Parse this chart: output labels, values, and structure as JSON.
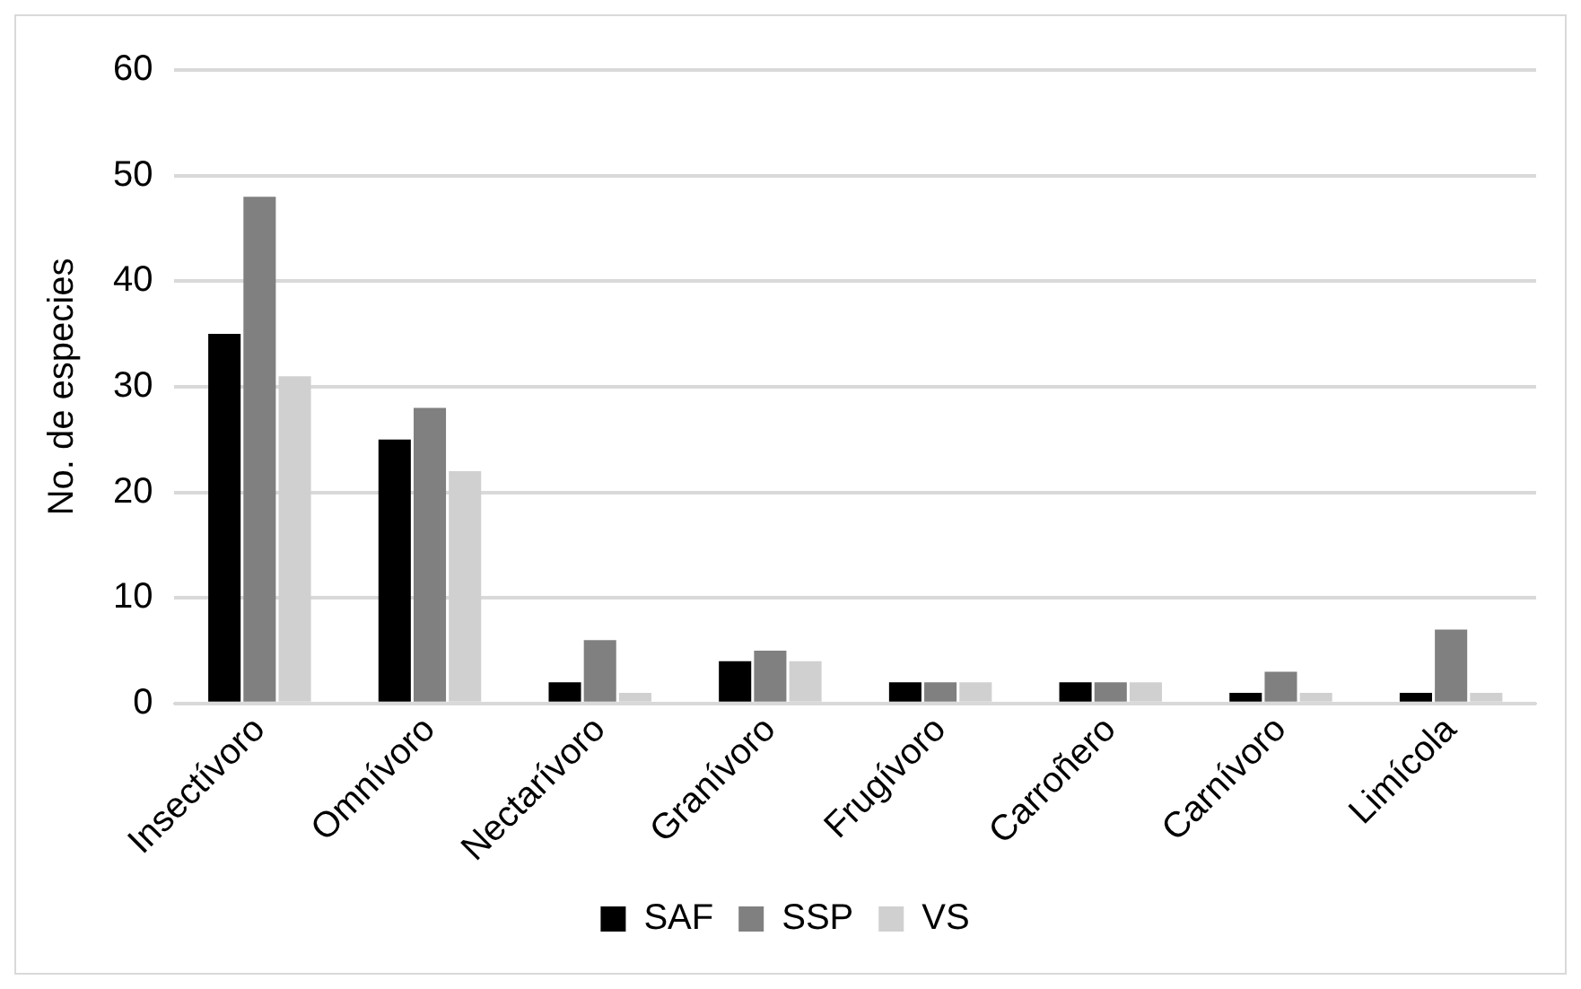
{
  "chart_data": {
    "type": "bar",
    "ylabel": "No. de especies",
    "categories": [
      "Insectívoro",
      "Omnívoro",
      "Nectarívoro",
      "Granívoro",
      "Frugívoro",
      "Carroñero",
      "Carnívoro",
      "Limícola"
    ],
    "series": [
      {
        "name": "SAF",
        "color": "#000000",
        "values": [
          35,
          25,
          2,
          4,
          2,
          2,
          1,
          1
        ]
      },
      {
        "name": "SSP",
        "color": "#808080",
        "values": [
          48,
          28,
          6,
          5,
          2,
          2,
          3,
          7
        ]
      },
      {
        "name": "VS",
        "color": "#d0d0d0",
        "values": [
          31,
          22,
          1,
          4,
          2,
          2,
          1,
          1
        ]
      }
    ],
    "ylim": [
      0,
      60
    ],
    "yticks": [
      0,
      10,
      20,
      30,
      40,
      50,
      60
    ],
    "grid": "y",
    "legend": "bottom"
  }
}
